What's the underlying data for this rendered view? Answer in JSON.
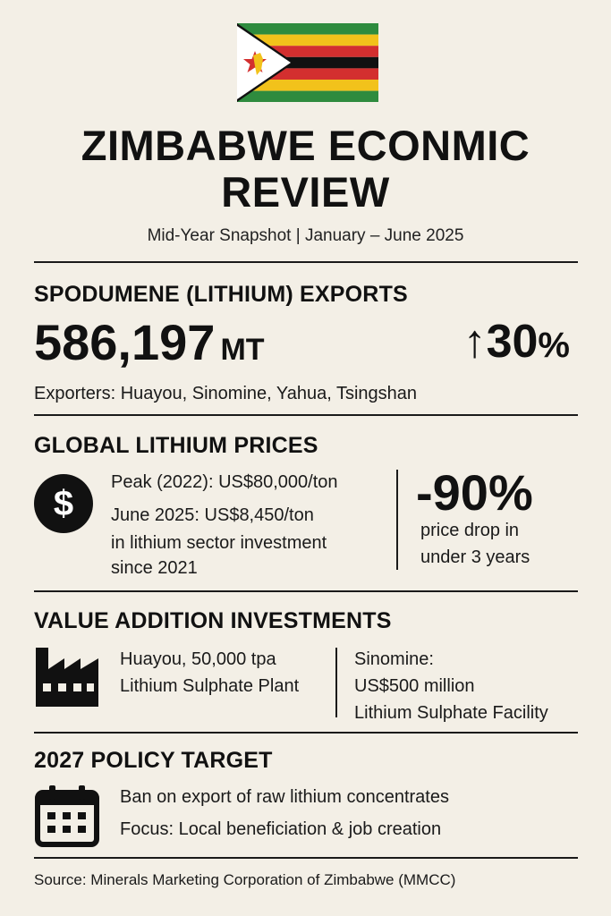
{
  "colors": {
    "background": "#f3efe6",
    "text": "#111111",
    "flag_green": "#2e8b3e",
    "flag_yellow": "#f2c21b",
    "flag_red": "#d32f2f",
    "flag_black": "#111111",
    "flag_white": "#ffffff"
  },
  "header": {
    "title_line1": "ZIMBABWE ECONMIC",
    "title_line2": "REVIEW",
    "subtitle": "Mid-Year Snapshot | January – June 2025"
  },
  "lithium_exports": {
    "heading": "SPODUMENE (LITHIUM) EXPORTS",
    "volume_value": "586,197",
    "volume_unit": "MT",
    "change_arrow": "↑",
    "change_value": "30",
    "change_unit": "%",
    "exporters": "Exporters: Huayou, Sinomine, Yahua, Tsingshan"
  },
  "global_prices": {
    "heading": "GLOBAL LITHIUM PRICES",
    "icon": "dollar-icon",
    "peak": "Peak (2022): US$80,000/ton",
    "current": "June 2025: US$8,450/ton",
    "investment_line1": "in lithium sector investment",
    "investment_line2": "since 2021",
    "drop_value": "-90%",
    "drop_line1": "price drop in",
    "drop_line2": "under 3 years"
  },
  "value_addition": {
    "heading": "VALUE ADDITION INVESTMENTS",
    "icon": "factory-icon",
    "huayou_line1": "Huayou, 50,000 tpa",
    "huayou_line2": "Lithium Sulphate Plant",
    "sinomine_line1": "Sinomine:",
    "sinomine_line2": "US$500 million",
    "sinomine_line3": "Lithium Sulphate Facility"
  },
  "policy": {
    "heading": "2027 POLICY TARGET",
    "icon": "calendar-icon",
    "line1": "Ban on export of raw lithium concentrates",
    "line2": "Focus: Local beneficiation & job creation"
  },
  "footer": {
    "source": "Source: Minerals Marketing Corporation of Zimbabwe (MMCC)"
  }
}
